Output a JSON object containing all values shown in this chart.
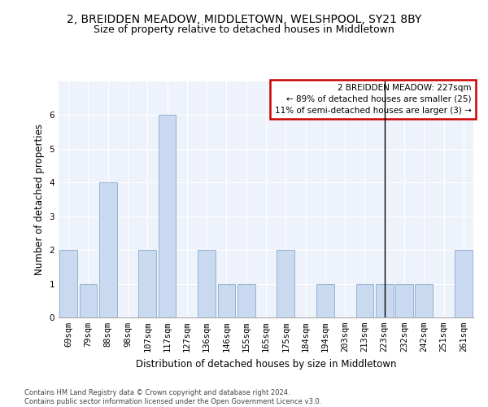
{
  "title": "2, BREIDDEN MEADOW, MIDDLETOWN, WELSHPOOL, SY21 8BY",
  "subtitle": "Size of property relative to detached houses in Middletown",
  "xlabel": "Distribution of detached houses by size in Middletown",
  "ylabel": "Number of detached properties",
  "categories": [
    "69sqm",
    "79sqm",
    "88sqm",
    "98sqm",
    "107sqm",
    "117sqm",
    "127sqm",
    "136sqm",
    "146sqm",
    "155sqm",
    "165sqm",
    "175sqm",
    "184sqm",
    "194sqm",
    "203sqm",
    "213sqm",
    "223sqm",
    "232sqm",
    "242sqm",
    "251sqm",
    "261sqm"
  ],
  "values": [
    2,
    1,
    4,
    0,
    2,
    6,
    0,
    2,
    1,
    1,
    0,
    2,
    0,
    1,
    0,
    1,
    1,
    1,
    1,
    0,
    2
  ],
  "bar_color": "#c9d9f0",
  "bar_edge_color": "#7a9fc4",
  "vline_x": 16,
  "vline_color": "#000000",
  "annotation_text": "2 BREIDDEN MEADOW: 227sqm\n← 89% of detached houses are smaller (25)\n11% of semi-detached houses are larger (3) →",
  "annotation_box_color": "#ffffff",
  "annotation_box_edge_color": "#cc0000",
  "ylim": [
    0,
    7
  ],
  "yticks": [
    0,
    1,
    2,
    3,
    4,
    5,
    6
  ],
  "footer": "Contains HM Land Registry data © Crown copyright and database right 2024.\nContains public sector information licensed under the Open Government Licence v3.0.",
  "bg_color": "#eef2fa",
  "title_fontsize": 10,
  "subtitle_fontsize": 9,
  "axis_label_fontsize": 8.5,
  "tick_fontsize": 7.5,
  "footer_fontsize": 6
}
